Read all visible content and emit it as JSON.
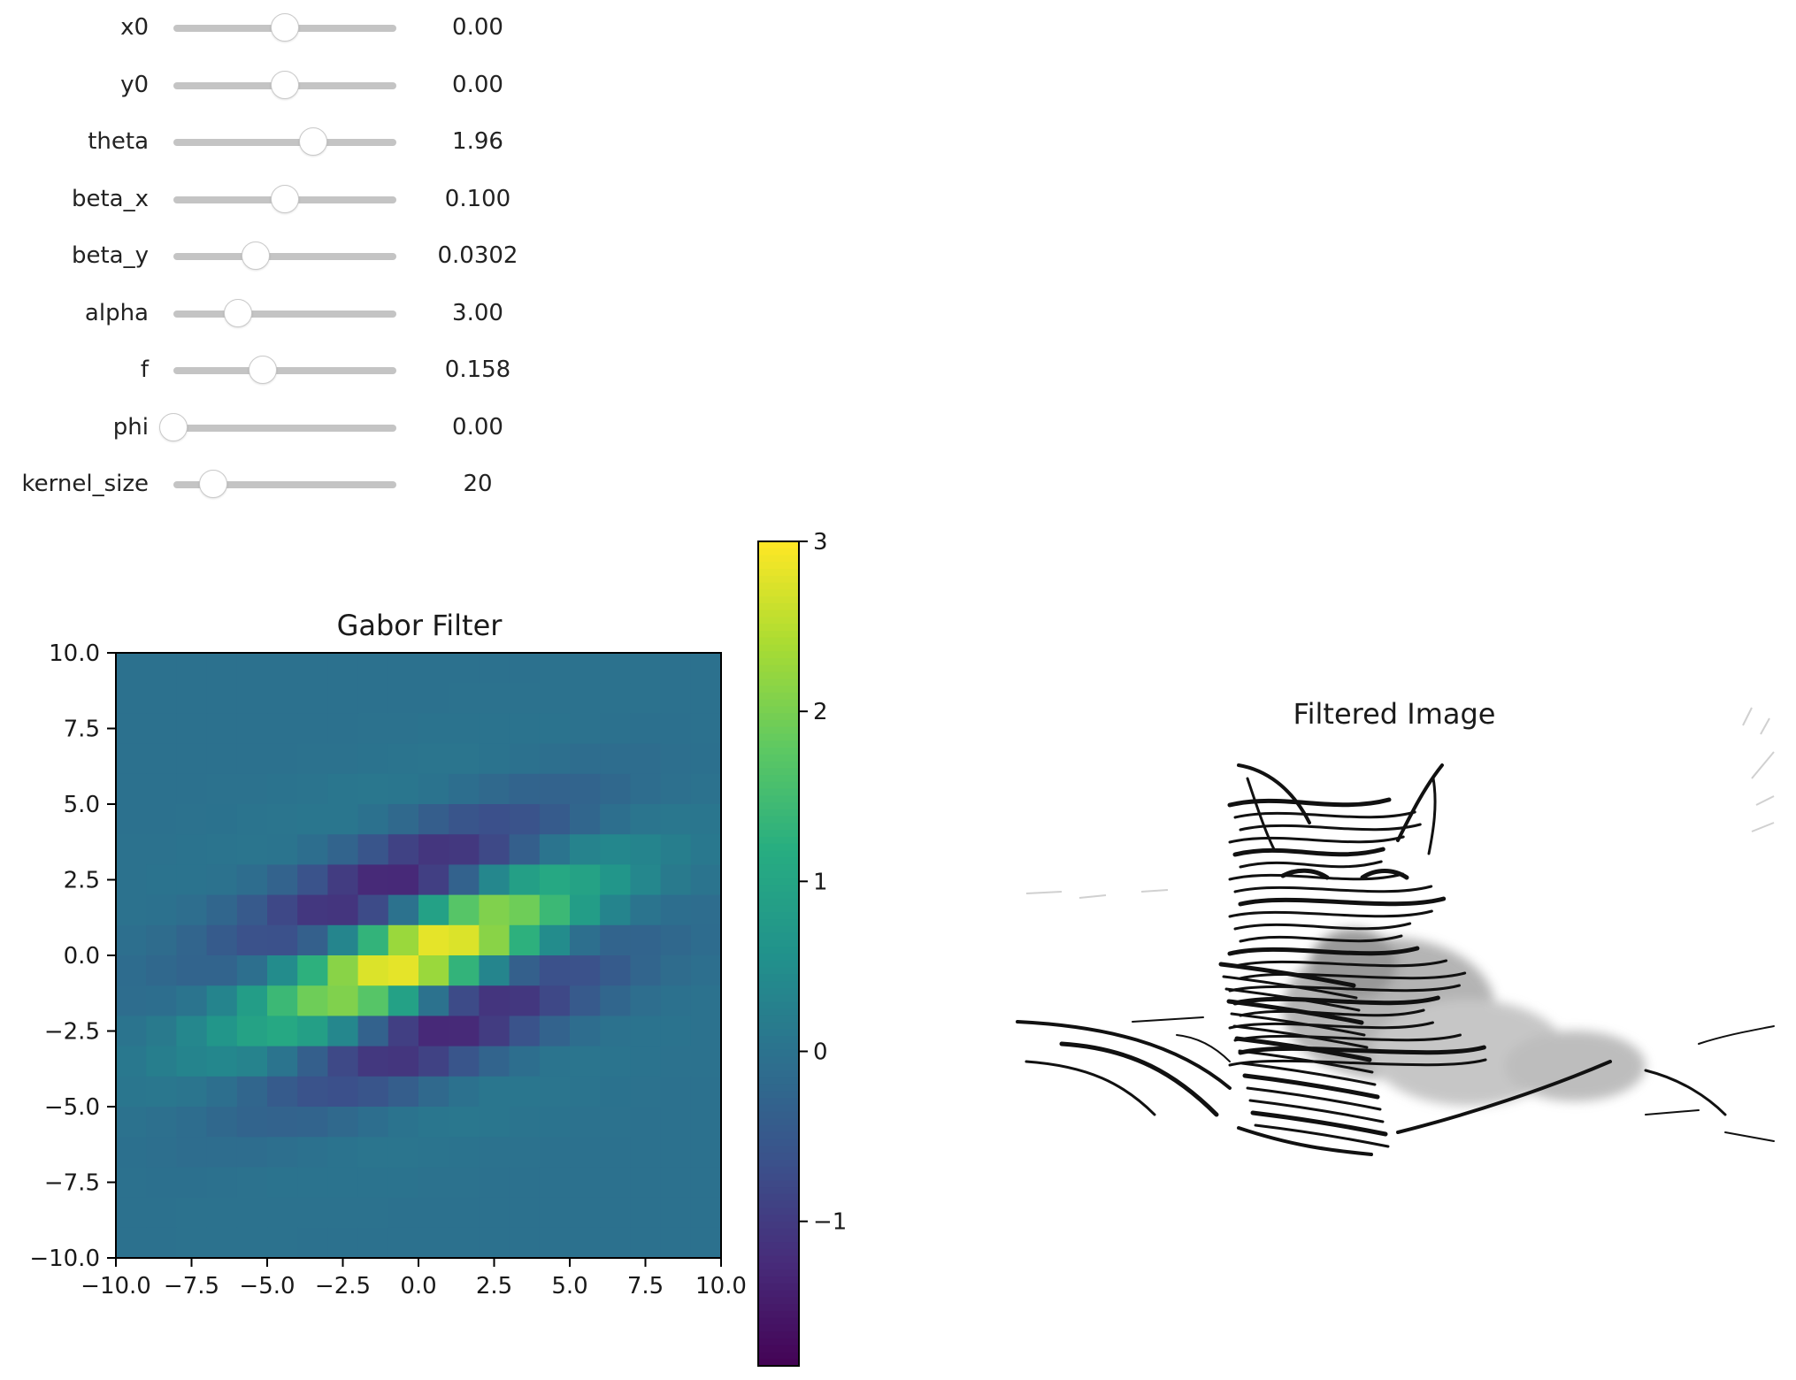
{
  "sliders": [
    {
      "label": "x0",
      "value": "0.00",
      "position": 0.5
    },
    {
      "label": "y0",
      "value": "0.00",
      "position": 0.5
    },
    {
      "label": "theta",
      "value": "1.96",
      "position": 0.625
    },
    {
      "label": "beta_x",
      "value": "0.100",
      "position": 0.5
    },
    {
      "label": "beta_y",
      "value": "0.0302",
      "position": 0.37
    },
    {
      "label": "alpha",
      "value": "3.00",
      "position": 0.29
    },
    {
      "label": "f",
      "value": "0.158",
      "position": 0.4
    },
    {
      "label": "phi",
      "value": "0.00",
      "position": 0.0
    },
    {
      "label": "kernel_size",
      "value": "20",
      "position": 0.18
    }
  ],
  "gabor_plot": {
    "title": "Gabor Filter",
    "colormap": "viridis",
    "chart_data": {
      "type": "heatmap",
      "title": "Gabor Filter",
      "xlim": [
        -10,
        10
      ],
      "ylim": [
        -10,
        10
      ],
      "x_ticks": [
        "−10.0",
        "−7.5",
        "−5.0",
        "−2.5",
        "0.0",
        "2.5",
        "5.0",
        "7.5",
        "10.0"
      ],
      "y_ticks": [
        "10.0",
        "7.5",
        "5.0",
        "2.5",
        "0.0",
        "−2.5",
        "−5.0",
        "−7.5",
        "−10.0"
      ],
      "colorbar_ticks": [
        "3",
        "2",
        "1",
        "0",
        "−1"
      ],
      "vmin": -1.85,
      "vmax": 3.0,
      "grid_size": 20
    }
  },
  "filtered_plot": {
    "title": "Filtered Image"
  }
}
